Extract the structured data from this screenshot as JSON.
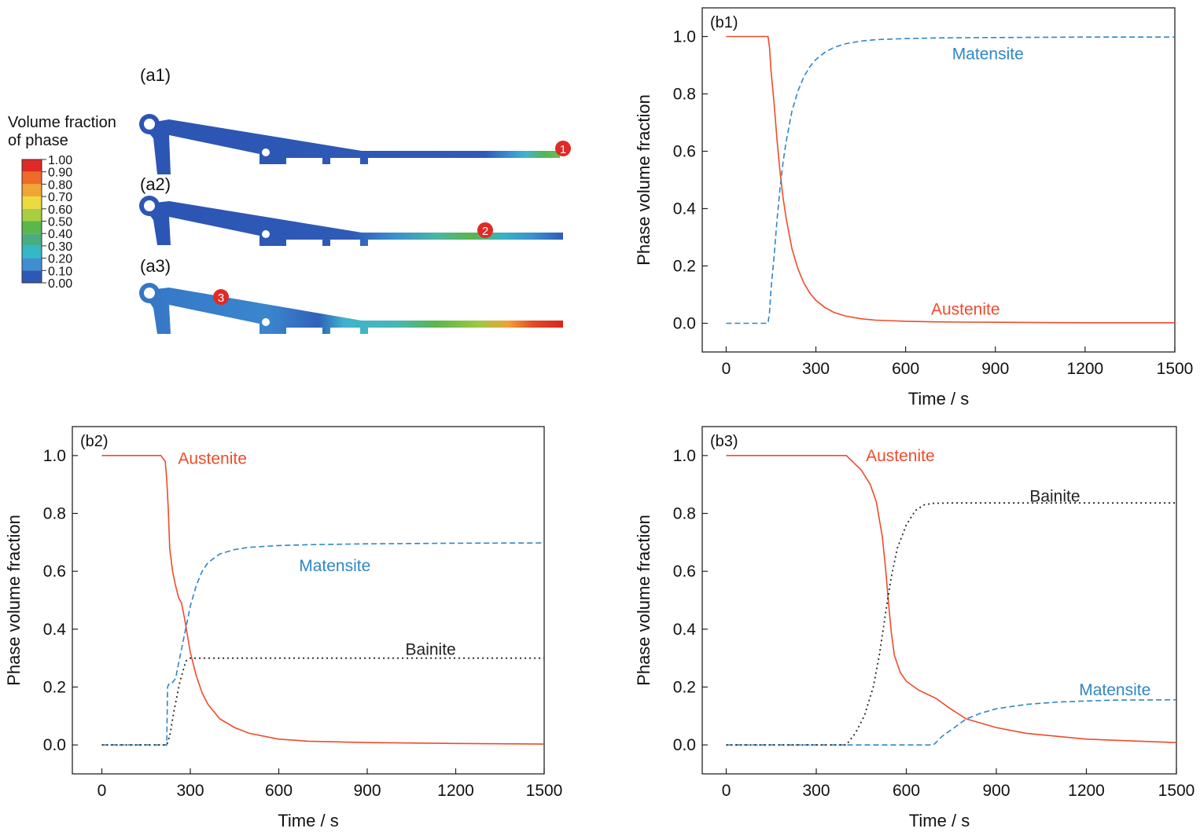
{
  "contour": {
    "legend_title": [
      "Volume fraction",
      "of phase"
    ],
    "legend_levels": [
      "1.00",
      "0.90",
      "0.80",
      "0.70",
      "0.60",
      "0.50",
      "0.40",
      "0.30",
      "0.20",
      "0.10",
      "0.00"
    ],
    "legend_colors": [
      "#e02a25",
      "#ef6b2a",
      "#f2a532",
      "#eadb3f",
      "#a8cf3f",
      "#5cb64b",
      "#49ad80",
      "#34b8c4",
      "#3f8fd0",
      "#2e58b6"
    ],
    "panels": [
      {
        "label": "(a1)",
        "marker": "1"
      },
      {
        "label": "(a2)",
        "marker": "2"
      },
      {
        "label": "(a3)",
        "marker": "3"
      }
    ]
  },
  "chart_data": [
    {
      "type": "line",
      "panel_label": "(b1)",
      "xlabel": "Time / s",
      "ylabel": "Phase volume fraction",
      "xlim": [
        -80,
        1500
      ],
      "ylim": [
        -0.1,
        1.1
      ],
      "xticks": [
        0,
        300,
        600,
        900,
        1200,
        1500
      ],
      "yticks": [
        0.0,
        0.2,
        0.4,
        0.6,
        0.8,
        1.0
      ],
      "series": [
        {
          "name": "Austenite",
          "color": "#ef4b2b",
          "dash": "solid",
          "x": [
            0,
            100,
            140,
            145,
            150,
            160,
            170,
            180,
            190,
            200,
            220,
            240,
            260,
            280,
            300,
            330,
            360,
            400,
            450,
            500,
            600,
            700,
            800,
            1000,
            1200,
            1500
          ],
          "y": [
            1.0,
            1.0,
            1.0,
            0.96,
            0.88,
            0.77,
            0.64,
            0.53,
            0.44,
            0.37,
            0.26,
            0.19,
            0.14,
            0.105,
            0.08,
            0.055,
            0.038,
            0.025,
            0.016,
            0.011,
            0.007,
            0.005,
            0.004,
            0.003,
            0.002,
            0.002
          ]
        },
        {
          "name": "Matensite",
          "color": "#2f86c5",
          "dash": "dashed",
          "x": [
            0,
            100,
            140,
            145,
            150,
            160,
            170,
            180,
            190,
            200,
            220,
            240,
            260,
            280,
            300,
            330,
            360,
            400,
            450,
            500,
            600,
            700,
            800,
            1000,
            1200,
            1500
          ],
          "y": [
            0.0,
            0.0,
            0.0,
            0.04,
            0.12,
            0.23,
            0.36,
            0.47,
            0.56,
            0.63,
            0.74,
            0.81,
            0.86,
            0.895,
            0.92,
            0.945,
            0.962,
            0.975,
            0.984,
            0.989,
            0.993,
            0.995,
            0.996,
            0.997,
            0.998,
            0.998
          ]
        }
      ],
      "annotations": [
        {
          "text": "Matensite",
          "x": 875,
          "y": 0.94,
          "color": "#2f86c5"
        },
        {
          "text": "Austenite",
          "x": 800,
          "y": 0.05,
          "color": "#ef4b2b"
        }
      ]
    },
    {
      "type": "line",
      "panel_label": "(b2)",
      "xlabel": "Time / s",
      "ylabel": "Phase volume fraction",
      "xlim": [
        -100,
        1500
      ],
      "ylim": [
        -0.1,
        1.1
      ],
      "xticks": [
        0,
        300,
        600,
        900,
        1200,
        1500
      ],
      "yticks": [
        0.0,
        0.2,
        0.4,
        0.6,
        0.8,
        1.0
      ],
      "series": [
        {
          "name": "Austenite",
          "color": "#ef4b2b",
          "dash": "solid",
          "x": [
            0,
            200,
            215,
            220,
            225,
            230,
            240,
            250,
            260,
            270,
            280,
            290,
            300,
            320,
            340,
            360,
            400,
            450,
            500,
            600,
            700,
            900,
            1200,
            1500
          ],
          "y": [
            1.0,
            1.0,
            0.98,
            0.92,
            0.82,
            0.68,
            0.6,
            0.55,
            0.51,
            0.49,
            0.44,
            0.38,
            0.32,
            0.24,
            0.18,
            0.14,
            0.09,
            0.06,
            0.04,
            0.02,
            0.013,
            0.008,
            0.005,
            0.003
          ]
        },
        {
          "name": "Matensite",
          "color": "#2f86c5",
          "dash": "dashed",
          "x": [
            0,
            220,
            223,
            227,
            235,
            250,
            260,
            270,
            280,
            290,
            300,
            320,
            340,
            360,
            400,
            450,
            500,
            600,
            700,
            900,
            1200,
            1500
          ],
          "y": [
            0.0,
            0.0,
            0.2,
            0.21,
            0.21,
            0.23,
            0.28,
            0.33,
            0.38,
            0.43,
            0.48,
            0.55,
            0.6,
            0.63,
            0.66,
            0.675,
            0.683,
            0.689,
            0.692,
            0.695,
            0.697,
            0.698
          ]
        },
        {
          "name": "Bainite",
          "color": "#222222",
          "dash": "dotted",
          "x": [
            0,
            220,
            230,
            245,
            265,
            285,
            300,
            600,
            1000,
            1500
          ],
          "y": [
            0.0,
            0.0,
            0.03,
            0.12,
            0.22,
            0.29,
            0.3,
            0.3,
            0.3,
            0.3
          ]
        }
      ],
      "annotations": [
        {
          "text": "Austenite",
          "x": 375,
          "y": 0.99,
          "color": "#ef4b2b"
        },
        {
          "text": "Matensite",
          "x": 790,
          "y": 0.62,
          "color": "#2f86c5"
        },
        {
          "text": "Bainite",
          "x": 1115,
          "y": 0.33,
          "color": "#222222"
        }
      ]
    },
    {
      "type": "line",
      "panel_label": "(b3)",
      "xlabel": "Time / s",
      "ylabel": "Phase volume fraction",
      "xlim": [
        -80,
        1500
      ],
      "ylim": [
        -0.1,
        1.1
      ],
      "xticks": [
        0,
        300,
        600,
        900,
        1200,
        1500
      ],
      "yticks": [
        0.0,
        0.2,
        0.4,
        0.6,
        0.8,
        1.0
      ],
      "series": [
        {
          "name": "Austenite",
          "color": "#ef4b2b",
          "dash": "solid",
          "x": [
            0,
            400,
            420,
            450,
            480,
            500,
            520,
            530,
            540,
            550,
            560,
            580,
            600,
            640,
            680,
            700,
            740,
            800,
            900,
            1000,
            1200,
            1500
          ],
          "y": [
            1.0,
            1.0,
            0.98,
            0.95,
            0.9,
            0.84,
            0.72,
            0.62,
            0.5,
            0.39,
            0.31,
            0.25,
            0.22,
            0.19,
            0.17,
            0.16,
            0.13,
            0.09,
            0.06,
            0.04,
            0.02,
            0.008
          ]
        },
        {
          "name": "Matensite",
          "color": "#2f86c5",
          "dash": "dashed",
          "x": [
            0,
            690,
            720,
            760,
            800,
            850,
            900,
            1000,
            1100,
            1200,
            1300,
            1500
          ],
          "y": [
            0.0,
            0.0,
            0.03,
            0.06,
            0.09,
            0.11,
            0.125,
            0.14,
            0.148,
            0.152,
            0.155,
            0.156
          ]
        },
        {
          "name": "Bainite",
          "color": "#222222",
          "dash": "dotted",
          "x": [
            0,
            400,
            430,
            460,
            490,
            510,
            530,
            550,
            570,
            600,
            630,
            660,
            690,
            750,
            1000,
            1500
          ],
          "y": [
            0.0,
            0.0,
            0.04,
            0.1,
            0.2,
            0.31,
            0.45,
            0.58,
            0.68,
            0.76,
            0.81,
            0.83,
            0.835,
            0.836,
            0.836,
            0.836
          ]
        }
      ],
      "annotations": [
        {
          "text": "Austenite",
          "x": 580,
          "y": 1.0,
          "color": "#ef4b2b"
        },
        {
          "text": "Bainite",
          "x": 1095,
          "y": 0.86,
          "color": "#222222"
        },
        {
          "text": "Matensite",
          "x": 1295,
          "y": 0.19,
          "color": "#2f86c5"
        }
      ]
    }
  ]
}
